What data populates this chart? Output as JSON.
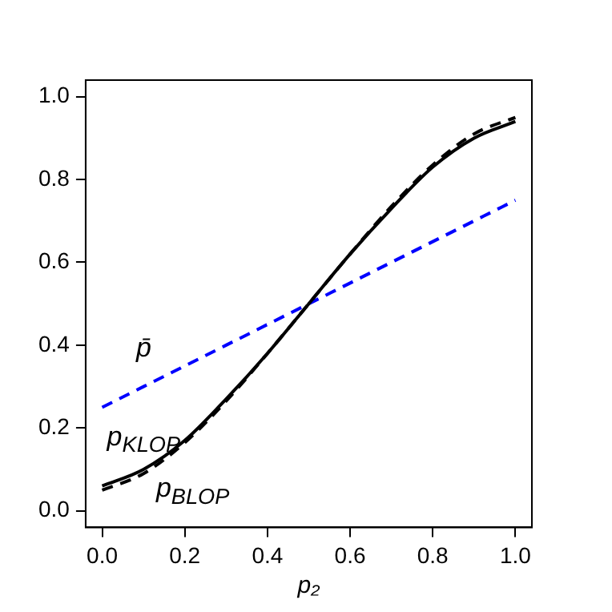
{
  "chart_data": {
    "type": "line",
    "xlabel": "p₂",
    "x": [
      0,
      0.1,
      0.2,
      0.3,
      0.4,
      0.5,
      0.6,
      0.7,
      0.8,
      0.9,
      1
    ],
    "xlim": [
      -0.04,
      1.04
    ],
    "ylim": [
      -0.04,
      1.04
    ],
    "xticks": [
      {
        "value": 0,
        "label": "0.0"
      },
      {
        "value": 0.2,
        "label": "0.2"
      },
      {
        "value": 0.4,
        "label": "0.4"
      },
      {
        "value": 0.6,
        "label": "0.6"
      },
      {
        "value": 0.8,
        "label": "0.8"
      },
      {
        "value": 1,
        "label": "1.0"
      }
    ],
    "yticks": [
      {
        "value": 0,
        "label": "0.0"
      },
      {
        "value": 0.2,
        "label": "0.2"
      },
      {
        "value": 0.4,
        "label": "0.4"
      },
      {
        "value": 0.6,
        "label": "0.6"
      },
      {
        "value": 0.8,
        "label": "0.8"
      },
      {
        "value": 1,
        "label": "1.0"
      }
    ],
    "series": [
      {
        "color": "#000000",
        "line_style": "solid",
        "values": [
          0.06,
          0.1,
          0.17,
          0.27,
          0.38,
          0.5,
          0.62,
          0.73,
          0.83,
          0.9,
          0.94
        ]
      },
      {
        "color": "#000000",
        "line_style": "dashed",
        "values": [
          0.05,
          0.09,
          0.165,
          0.265,
          0.38,
          0.5,
          0.62,
          0.735,
          0.835,
          0.91,
          0.95
        ]
      },
      {
        "color": "#0000ff",
        "line_style": "dashed",
        "values": [
          0.25,
          0.3,
          0.35,
          0.4,
          0.45,
          0.5,
          0.55,
          0.6,
          0.65,
          0.7,
          0.75
        ]
      }
    ],
    "annotations": [
      "p̄",
      "p$_{KLOP}$",
      "p$_{BLOP}$"
    ],
    "grid": false,
    "legend": false,
    "marker": "none"
  }
}
